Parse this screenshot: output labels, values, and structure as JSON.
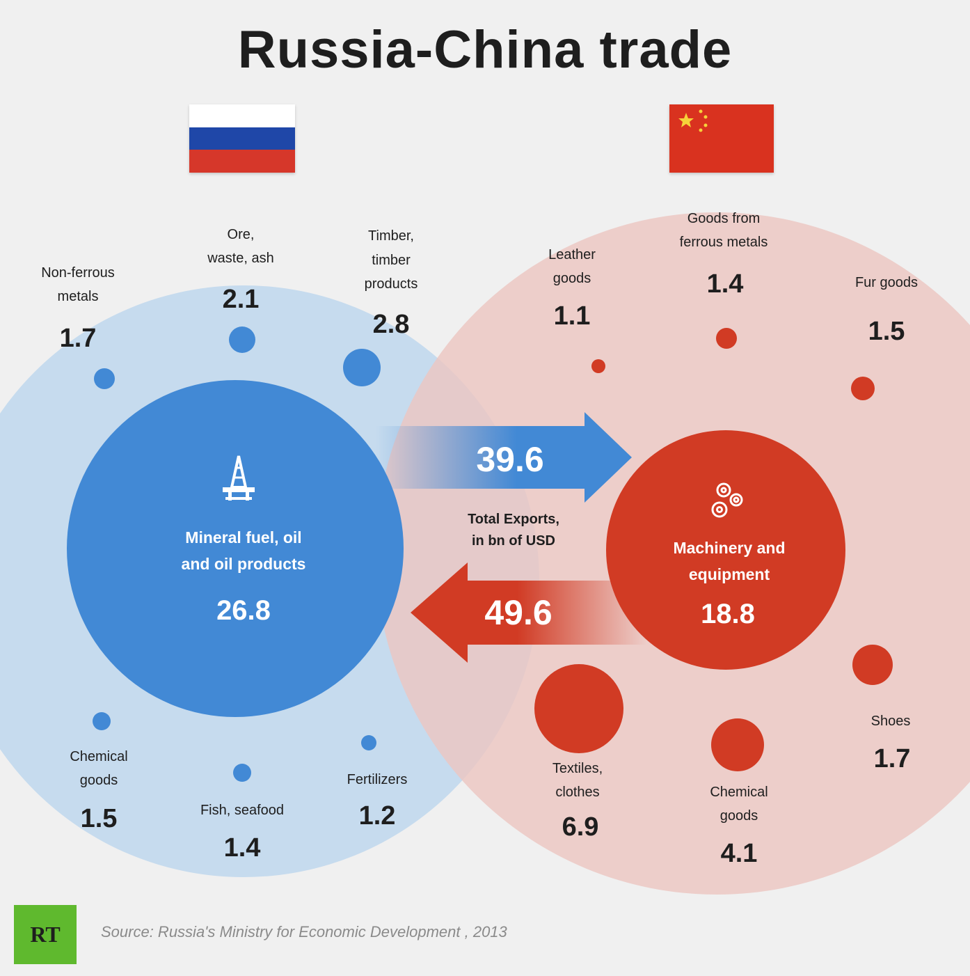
{
  "title": "Russia-China trade",
  "colors": {
    "russia": "#4289d5",
    "russia_light": "#c6dbee",
    "china": "#d13b24",
    "china_light": "#ecc6c0",
    "text_dark": "#1e1e1e"
  },
  "icons": {
    "russia_center": "oil-derrick-icon",
    "china_center": "gears-icon"
  },
  "chart_data": {
    "type": "bubble",
    "title": "Russia-China trade",
    "units_label": "Total Exports, in bn of USD",
    "flows": [
      {
        "from": "Russia",
        "to": "China",
        "value": "39.6"
      },
      {
        "from": "China",
        "to": "Russia",
        "value": "49.6"
      }
    ],
    "russia_center": {
      "label_line1": "Mineral fuel, oil",
      "label_line2": "and oil products",
      "value": "26.8"
    },
    "china_center": {
      "label_line1": "Machinery and",
      "label_line2": "equipment",
      "value": "18.8"
    },
    "russia_exports": [
      {
        "label_line1": "Non-ferrous",
        "label_line2": "metals",
        "label_line3": "",
        "value": "1.7"
      },
      {
        "label_line1": "Ore,",
        "label_line2": "waste, ash",
        "label_line3": "",
        "value": "2.1"
      },
      {
        "label_line1": "Timber,",
        "label_line2": "timber",
        "label_line3": "products",
        "value": "2.8"
      },
      {
        "label_line1": "Chemical",
        "label_line2": "goods",
        "label_line3": "",
        "value": "1.5"
      },
      {
        "label_line1": "Fish, seafood",
        "label_line2": "",
        "label_line3": "",
        "value": "1.4"
      },
      {
        "label_line1": "Fertilizers",
        "label_line2": "",
        "label_line3": "",
        "value": "1.2"
      }
    ],
    "china_exports": [
      {
        "label_line1": "Leather",
        "label_line2": "goods",
        "value": "1.1"
      },
      {
        "label_line1": "Goods from",
        "label_line2": "ferrous metals",
        "value": "1.4"
      },
      {
        "label_line1": "Fur goods",
        "label_line2": "",
        "value": "1.5"
      },
      {
        "label_line1": "Shoes",
        "label_line2": "",
        "value": "1.7"
      },
      {
        "label_line1": "Textiles,",
        "label_line2": "clothes",
        "value": "6.9"
      },
      {
        "label_line1": "Chemical",
        "label_line2": "goods",
        "value": "4.1"
      }
    ]
  },
  "footer": {
    "logo": "RT",
    "source": "Source: Russia's Ministry for Economic Development , 2013"
  }
}
